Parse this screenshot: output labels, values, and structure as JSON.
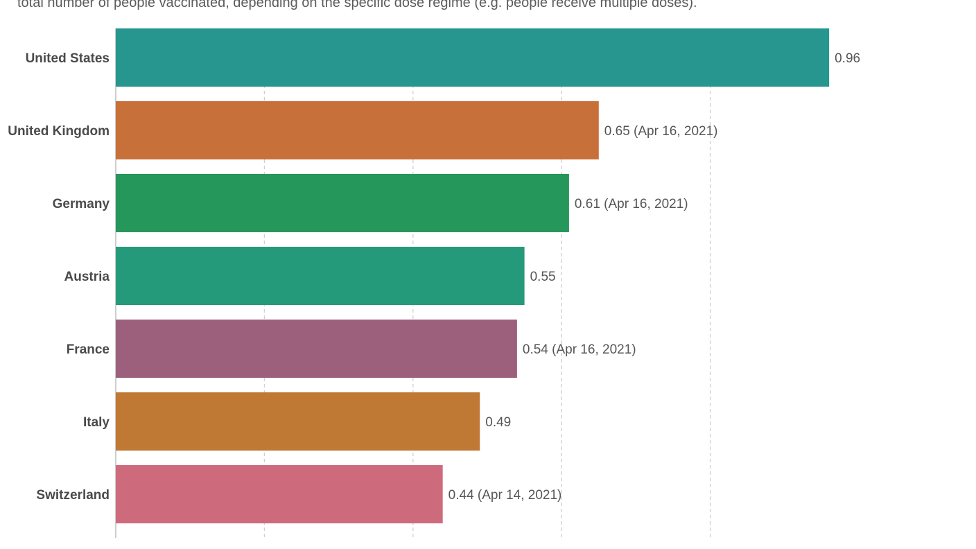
{
  "subtitle": "total number of people vaccinated, depending on the specific dose regime (e.g. people receive multiple doses).",
  "chart_data": {
    "type": "bar",
    "orientation": "horizontal",
    "categories": [
      "United States",
      "United Kingdom",
      "Germany",
      "Austria",
      "France",
      "Italy",
      "Switzerland"
    ],
    "values": [
      0.96,
      0.65,
      0.61,
      0.55,
      0.54,
      0.49,
      0.44
    ],
    "value_labels": [
      "0.96",
      "0.65 (Apr 16, 2021)",
      "0.61 (Apr 16, 2021)",
      "0.55",
      "0.54 (Apr 16, 2021)",
      "0.49",
      "0.44 (Apr 14, 2021)"
    ],
    "colors": [
      "#26968f",
      "#c8703a",
      "#26975a",
      "#259a7b",
      "#9c607c",
      "#c07835",
      "#cd6b7d"
    ],
    "xlim": [
      0,
      1.0
    ],
    "grid_x": [
      0.2,
      0.4,
      0.6,
      0.8
    ],
    "grid": true,
    "legend": "none"
  }
}
